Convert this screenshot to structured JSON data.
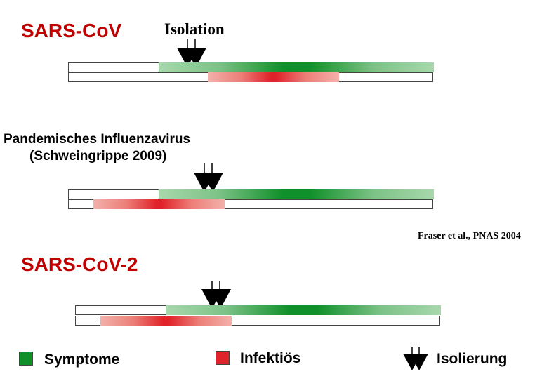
{
  "panels": [
    {
      "title": "SARS-CoV",
      "arrow_label": "Isolation"
    },
    {
      "title_line1": "Pandemisches Influenzavirus",
      "title_line2": "(Schweingrippe 2009)"
    },
    {
      "title": "SARS-CoV-2"
    }
  ],
  "citation": "Fraser et al., PNAS 2004",
  "legend": {
    "symptoms": {
      "label": "Symptome",
      "color": "#10902a"
    },
    "infectious": {
      "label": "Infektiös",
      "color": "#e0232a"
    },
    "isolation": {
      "label": "Isolierung",
      "icon": "double-arrow-down-icon"
    }
  }
}
